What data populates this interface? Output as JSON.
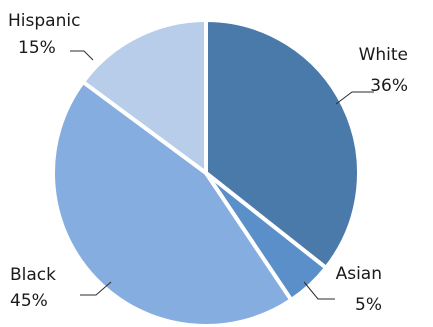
{
  "chart_data": {
    "type": "pie",
    "title": "",
    "start_angle_deg": 0,
    "direction": "clockwise",
    "slices": [
      {
        "label": "White",
        "value": 36,
        "value_label": "36%",
        "color": "#4a7aaa"
      },
      {
        "label": "Asian",
        "value": 5,
        "value_label": "5%",
        "color": "#5b8fc9"
      },
      {
        "label": "Black",
        "value": 45,
        "value_label": "45%",
        "color": "#86ade0"
      },
      {
        "label": "Hispanic",
        "value": 15,
        "value_label": "15%",
        "color": "#b7cde9"
      }
    ]
  }
}
